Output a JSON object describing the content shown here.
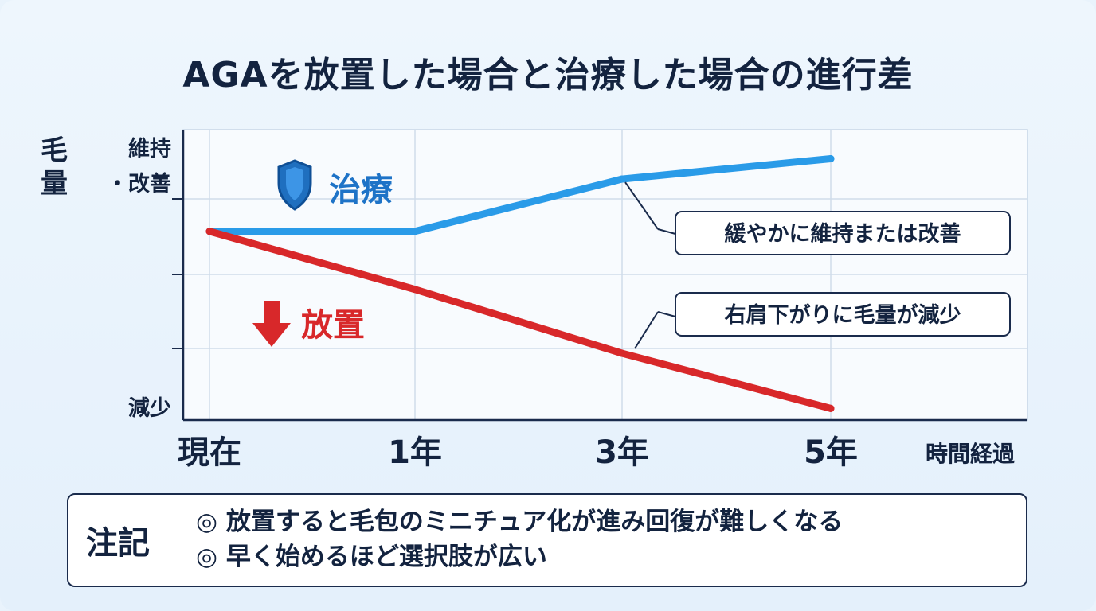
{
  "title": "AGAを放置した場合と治療した場合の進行差",
  "chart_data": {
    "type": "line",
    "ylabel": "毛量",
    "xlabel": "時間経過",
    "x_positions": [
      0,
      1,
      2,
      3
    ],
    "categories": [
      "現在",
      "1年",
      "3年",
      "5年"
    ],
    "y_top_label": "維持\n・改善",
    "y_bottom_label": "減少",
    "ylim": [
      0,
      100
    ],
    "grid": true,
    "series": [
      {
        "name": "治療",
        "color": "#2a9be8",
        "icon": "shield-icon",
        "x": [
          0,
          1,
          2,
          3
        ],
        "values": [
          65,
          65,
          83,
          90
        ],
        "annotation": "緩やかに維持または改善",
        "annotation_at": 2
      },
      {
        "name": "放置",
        "color": "#d8282a",
        "icon": "down-arrow-icon",
        "x": [
          0,
          1,
          2,
          3
        ],
        "values": [
          65,
          45,
          23,
          4
        ],
        "annotation": "右肩下がりに毛量が減少",
        "annotation_at": 2
      }
    ]
  },
  "notes": {
    "title": "注記",
    "items": [
      "◎ 放置すると毛包のミニチュア化が進み回復が難しくなる",
      "◎ 早く始めるほど選択肢が広い"
    ]
  }
}
